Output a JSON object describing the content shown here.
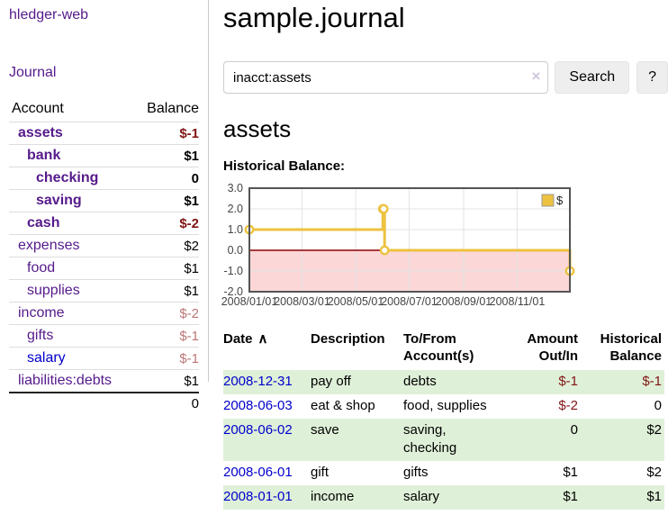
{
  "colors": {
    "link_purple": "#551a8b",
    "link_blue": "#0000cc",
    "negative_strong": "#801515",
    "negative_soft": "#bc7676",
    "row_stripe_green": "#dff0d8",
    "button_bg": "#eeeeee",
    "divider": "#cccccc",
    "border_light": "#dddddd"
  },
  "sidebar": {
    "brand": "hledger-web",
    "journal_link": "Journal",
    "accounts_table": {
      "headers": {
        "account": "Account",
        "balance": "Balance"
      },
      "rows": [
        {
          "name": "assets",
          "indent": 1,
          "bold": true,
          "balance": "$-1",
          "neg": "strong"
        },
        {
          "name": "bank",
          "indent": 2,
          "bold": true,
          "balance": "$1"
        },
        {
          "name": "checking",
          "indent": 3,
          "bold": true,
          "balance": "0"
        },
        {
          "name": "saving",
          "indent": 3,
          "bold": true,
          "balance": "$1"
        },
        {
          "name": "cash",
          "indent": 2,
          "bold": true,
          "balance": "$-2",
          "neg": "strong"
        },
        {
          "name": "expenses",
          "indent": 1,
          "bold": false,
          "balance": "$2"
        },
        {
          "name": "food",
          "indent": 2,
          "bold": false,
          "balance": "$1"
        },
        {
          "name": "supplies",
          "indent": 2,
          "bold": false,
          "balance": "$1"
        },
        {
          "name": "income",
          "indent": 1,
          "bold": false,
          "balance": "$-2",
          "neg": "soft"
        },
        {
          "name": "gifts",
          "indent": 2,
          "bold": false,
          "balance": "$-1",
          "neg": "soft"
        },
        {
          "name": "salary",
          "indent": 2,
          "bold": false,
          "balance": "$-1",
          "neg": "soft",
          "link": "blue"
        },
        {
          "name": "liabilities:debts",
          "indent": 1,
          "bold": false,
          "balance": "$1"
        }
      ],
      "total": "0"
    }
  },
  "header": {
    "title": "sample.journal"
  },
  "search": {
    "value": "inacct:assets",
    "clear_icon": "×",
    "button_label": "Search",
    "help_label": "?"
  },
  "account_page": {
    "heading": "assets",
    "chart_section_label": "Historical Balance:"
  },
  "chart_data": {
    "type": "line",
    "step": true,
    "series": [
      {
        "name": "$",
        "points": [
          [
            "2008-01-01",
            1
          ],
          [
            "2008-06-01",
            2
          ],
          [
            "2008-06-02",
            2
          ],
          [
            "2008-06-03",
            0
          ],
          [
            "2008-12-31",
            -1
          ]
        ]
      }
    ],
    "x_ticks": [
      "2008/01/01",
      "2008/03/01",
      "2008/05/01",
      "2008/07/01",
      "2008/09/01",
      "2008/11/01"
    ],
    "y_ticks": [
      "3.0",
      "2.0",
      "1.0",
      "0.0",
      "-1.0",
      "-2.0"
    ],
    "ylim": [
      -2,
      3
    ],
    "xlim": [
      "2008-01-01",
      "2008-12-31"
    ],
    "legend": {
      "label": "$",
      "position": "top-right"
    },
    "negative_region_shaded": true,
    "grid": true,
    "line_color": "#edc240",
    "negative_fill": "#fbd7d7",
    "zero_line_color": "#8b0000",
    "border_color": "#545454",
    "grid_color": "#e3e3e3",
    "tick_color": "#444444"
  },
  "register_table": {
    "headers": [
      "Date",
      "Description",
      "To/From Account(s)",
      "Amount Out/In",
      "Historical Balance"
    ],
    "sort_icon": "∧",
    "rows": [
      {
        "date": "2008-12-31",
        "description": "pay off",
        "accounts": "debts",
        "amount": "$-1",
        "balance": "$-1",
        "amount_neg": true,
        "balance_neg": true,
        "shaded": true
      },
      {
        "date": "2008-06-03",
        "description": "eat & shop",
        "accounts": "food, supplies",
        "amount": "$-2",
        "balance": "0",
        "amount_neg": true,
        "balance_neg": false,
        "shaded": false
      },
      {
        "date": "2008-06-02",
        "description": "save",
        "accounts": "saving, checking",
        "amount": "0",
        "balance": "$2",
        "amount_neg": false,
        "balance_neg": false,
        "shaded": true
      },
      {
        "date": "2008-06-01",
        "description": "gift",
        "accounts": "gifts",
        "amount": "$1",
        "balance": "$2",
        "amount_neg": false,
        "balance_neg": false,
        "shaded": false
      },
      {
        "date": "2008-01-01",
        "description": "income",
        "accounts": "salary",
        "amount": "$1",
        "balance": "$1",
        "amount_neg": false,
        "balance_neg": false,
        "shaded": true
      }
    ]
  }
}
